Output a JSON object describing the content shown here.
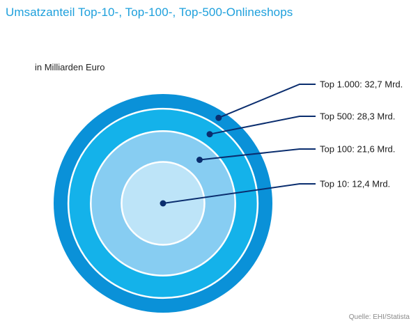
{
  "header": {
    "title": "Umsatzanteil Top-10-, Top-100-, Top-500-Onlineshops",
    "unit": "in Milliarden Euro"
  },
  "footer": {
    "source": "Quelle: EHI/Statista"
  },
  "colors": {
    "title": "#1ea0dc",
    "leader_line": "#0a2d6e",
    "ring_top1000": "#0a91d8",
    "ring_top500": "#14b2ea",
    "ring_top100": "#87cdf2",
    "ring_top10": "#bde4f8",
    "ring_border": "#ffffff"
  },
  "chart_data": {
    "type": "nested-circles",
    "unit": "Milliarden Euro",
    "series": [
      {
        "name": "Top 1.000",
        "value": 32.7,
        "label": "Top 1.000: 32,7 Mrd."
      },
      {
        "name": "Top 500",
        "value": 28.3,
        "label": "Top 500: 28,3 Mrd."
      },
      {
        "name": "Top 100",
        "value": 21.6,
        "label": "Top 100: 21,6 Mrd."
      },
      {
        "name": "Top 10",
        "value": 12.4,
        "label": "Top 10: 12,4 Mrd."
      }
    ]
  }
}
